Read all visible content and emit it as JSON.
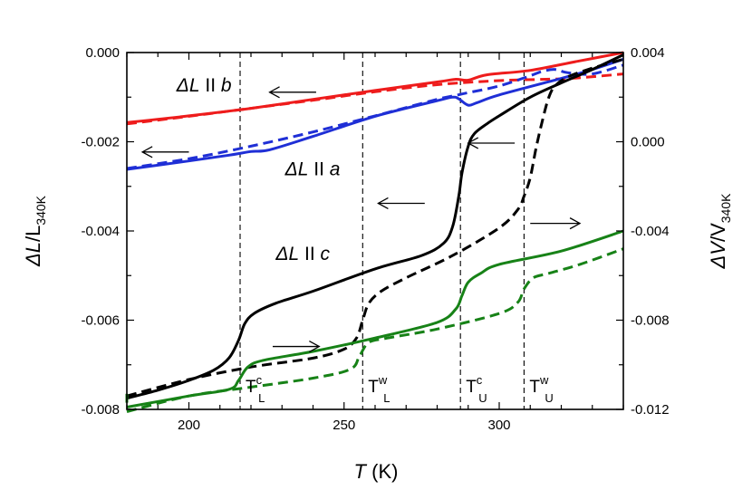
{
  "chart_data": {
    "type": "line",
    "title": "",
    "xlabel": {
      "italic": "T",
      "rest": " (K)"
    },
    "ylabel_left": {
      "italic": "ΔL",
      "rest": "/L",
      "sub": "340K"
    },
    "ylabel_right": {
      "italic": "ΔV",
      "rest": "/V",
      "sub": "340K"
    },
    "xlim": [
      180,
      340
    ],
    "ylim_left": [
      -0.008,
      0.0
    ],
    "ylim_right": [
      -0.012,
      0.004
    ],
    "x_ticks": [
      200,
      250,
      300
    ],
    "x_tick_labels": [
      "200",
      "250",
      "300"
    ],
    "left_ticks": [
      0.0,
      -0.002,
      -0.004,
      -0.006,
      -0.008
    ],
    "left_tick_labels": [
      "0.000",
      "-0.002",
      "-0.004",
      "-0.006",
      "-0.008"
    ],
    "right_ticks": [
      0.004,
      0.0,
      -0.004,
      -0.008,
      -0.012
    ],
    "right_tick_labels": [
      "0.004",
      "0.000",
      "-0.004",
      "-0.008",
      "-0.012"
    ],
    "colors": {
      "b": "#ee1c1c",
      "a": "#1f2fd6",
      "c": "#000000",
      "v": "#178217"
    },
    "vertical_lines": [
      {
        "name": "TcL",
        "x": 216.5,
        "base": "T",
        "sup": "c",
        "sub": "L"
      },
      {
        "name": "TwL",
        "x": 256,
        "base": "T",
        "sup": "w",
        "sub": "L"
      },
      {
        "name": "TcU",
        "x": 287.5,
        "base": "T",
        "sup": "c",
        "sub": "U"
      },
      {
        "name": "TwU",
        "x": 308,
        "base": "T",
        "sup": "w",
        "sub": "U"
      }
    ],
    "annotations": [
      {
        "name": "label-b",
        "base": "ΔL",
        "mid": " II ",
        "tail": "b",
        "x": 196,
        "y": -0.00087
      },
      {
        "name": "label-a",
        "base": "ΔL",
        "mid": " II ",
        "tail": "a",
        "x": 231,
        "y": -0.00275
      },
      {
        "name": "label-c",
        "base": "ΔL",
        "mid": " II ",
        "tail": "c",
        "x": 228,
        "y": -0.00465
      }
    ],
    "arrows": [
      {
        "name": "arrow-b-left",
        "dir": "left",
        "x1": 241,
        "x2": 226,
        "y": -0.00089
      },
      {
        "name": "arrow-a-left",
        "dir": "left",
        "x1": 200,
        "x2": 185,
        "y": -0.00223
      },
      {
        "name": "arrow-c-left",
        "dir": "left",
        "x1": 276,
        "x2": 261,
        "y": -0.00338
      },
      {
        "name": "arrow-cu-left",
        "dir": "left",
        "x1": 305,
        "x2": 290,
        "y": -0.00203
      },
      {
        "name": "arrow-v-right",
        "dir": "right",
        "x1": 227,
        "x2": 242,
        "y": -0.00659
      },
      {
        "name": "arrow-vu-right",
        "dir": "right",
        "x1": 310,
        "x2": 326,
        "y": -0.00383
      }
    ],
    "series": [
      {
        "name": "b-heating-solid",
        "color": "#ee1c1c",
        "style": "solid",
        "axis": "left",
        "points": [
          [
            180,
            -0.00157
          ],
          [
            200,
            -0.00142
          ],
          [
            220,
            -0.00125
          ],
          [
            240,
            -0.00105
          ],
          [
            260,
            -0.00085
          ],
          [
            280,
            -0.00066
          ],
          [
            286,
            -0.0006
          ],
          [
            290,
            -0.00062
          ],
          [
            296,
            -0.0005
          ],
          [
            310,
            -0.0004
          ],
          [
            325,
            -0.0002
          ],
          [
            340,
            0.0
          ]
        ]
      },
      {
        "name": "b-cooling-dashed",
        "color": "#ee1c1c",
        "style": "dashed",
        "axis": "left",
        "points": [
          [
            180,
            -0.0016
          ],
          [
            200,
            -0.00143
          ],
          [
            220,
            -0.00125
          ],
          [
            240,
            -0.00107
          ],
          [
            260,
            -0.00088
          ],
          [
            280,
            -0.00072
          ],
          [
            300,
            -0.00063
          ],
          [
            315,
            -0.0006
          ],
          [
            325,
            -0.00057
          ],
          [
            340,
            -0.00048
          ]
        ]
      },
      {
        "name": "a-heating-solid",
        "color": "#1f2fd6",
        "style": "solid",
        "axis": "left",
        "points": [
          [
            180,
            -0.00262
          ],
          [
            200,
            -0.00243
          ],
          [
            213,
            -0.0023
          ],
          [
            220,
            -0.00222
          ],
          [
            226,
            -0.00218
          ],
          [
            240,
            -0.00188
          ],
          [
            260,
            -0.00143
          ],
          [
            280,
            -0.00108
          ],
          [
            285,
            -0.001
          ],
          [
            287,
            -0.00104
          ],
          [
            290,
            -0.00118
          ],
          [
            293,
            -0.00112
          ],
          [
            300,
            -0.00095
          ],
          [
            320,
            -0.00058
          ],
          [
            330,
            -0.00038
          ],
          [
            340,
            -0.00015
          ]
        ]
      },
      {
        "name": "a-cooling-dashed",
        "color": "#1f2fd6",
        "style": "dashed",
        "axis": "left",
        "points": [
          [
            180,
            -0.0026
          ],
          [
            200,
            -0.00238
          ],
          [
            220,
            -0.0021
          ],
          [
            240,
            -0.00178
          ],
          [
            260,
            -0.00142
          ],
          [
            280,
            -0.00105
          ],
          [
            286,
            -0.00096
          ],
          [
            290,
            -0.0009
          ],
          [
            300,
            -0.00075
          ],
          [
            310,
            -0.00052
          ],
          [
            314,
            -0.00042
          ],
          [
            318,
            -0.00038
          ],
          [
            322,
            -0.00045
          ],
          [
            330,
            -0.00048
          ],
          [
            340,
            -0.00028
          ]
        ]
      },
      {
        "name": "c-heating-solid",
        "color": "#000000",
        "style": "solid",
        "axis": "left",
        "points": [
          [
            180,
            -0.00775
          ],
          [
            190,
            -0.00757
          ],
          [
            200,
            -0.00735
          ],
          [
            208,
            -0.00712
          ],
          [
            213,
            -0.00684
          ],
          [
            216,
            -0.00645
          ],
          [
            218,
            -0.00608
          ],
          [
            221,
            -0.00585
          ],
          [
            228,
            -0.00562
          ],
          [
            240,
            -0.00535
          ],
          [
            260,
            -0.00485
          ],
          [
            275,
            -0.00455
          ],
          [
            282,
            -0.00428
          ],
          [
            285,
            -0.0039
          ],
          [
            287,
            -0.0032
          ],
          [
            288,
            -0.0027
          ],
          [
            290,
            -0.0021
          ],
          [
            292,
            -0.00182
          ],
          [
            296,
            -0.0016
          ],
          [
            300,
            -0.00142
          ],
          [
            310,
            -0.001
          ],
          [
            320,
            -0.00068
          ],
          [
            330,
            -0.00038
          ],
          [
            340,
            -5e-05
          ]
        ]
      },
      {
        "name": "c-cooling-dashed",
        "color": "#000000",
        "style": "dashed",
        "axis": "left",
        "points": [
          [
            180,
            -0.0077
          ],
          [
            200,
            -0.00733
          ],
          [
            220,
            -0.00705
          ],
          [
            240,
            -0.00685
          ],
          [
            250,
            -0.00665
          ],
          [
            254,
            -0.0064
          ],
          [
            256,
            -0.006
          ],
          [
            258,
            -0.00562
          ],
          [
            262,
            -0.00535
          ],
          [
            270,
            -0.00505
          ],
          [
            285,
            -0.00455
          ],
          [
            300,
            -0.00393
          ],
          [
            306,
            -0.00352
          ],
          [
            308,
            -0.00322
          ],
          [
            310,
            -0.0028
          ],
          [
            312,
            -0.0021
          ],
          [
            314,
            -0.0015
          ],
          [
            316,
            -0.001
          ],
          [
            318,
            -0.00075
          ],
          [
            322,
            -0.00055
          ],
          [
            330,
            -0.00035
          ],
          [
            340,
            -0.00015
          ]
        ]
      },
      {
        "name": "v-heating-solid",
        "color": "#178217",
        "style": "solid",
        "axis": "right",
        "points": [
          [
            180,
            -0.0119
          ],
          [
            200,
            -0.0114
          ],
          [
            213,
            -0.0111
          ],
          [
            216,
            -0.0107
          ],
          [
            219,
            -0.0101
          ],
          [
            224,
            -0.0098
          ],
          [
            240,
            -0.0094
          ],
          [
            260,
            -0.0088
          ],
          [
            280,
            -0.0081
          ],
          [
            286,
            -0.0075
          ],
          [
            288,
            -0.0069
          ],
          [
            290,
            -0.0063
          ],
          [
            294,
            -0.0059
          ],
          [
            300,
            -0.0055
          ],
          [
            320,
            -0.0049
          ],
          [
            340,
            -0.004
          ]
        ]
      },
      {
        "name": "v-cooling-dashed",
        "color": "#178217",
        "style": "dashed",
        "axis": "right",
        "points": [
          [
            180,
            -0.0121
          ],
          [
            200,
            -0.0114
          ],
          [
            220,
            -0.011
          ],
          [
            240,
            -0.0106
          ],
          [
            252,
            -0.0102
          ],
          [
            255,
            -0.0096
          ],
          [
            258,
            -0.009
          ],
          [
            264,
            -0.0088
          ],
          [
            280,
            -0.0084
          ],
          [
            300,
            -0.0077
          ],
          [
            306,
            -0.0072
          ],
          [
            308,
            -0.0066
          ],
          [
            311,
            -0.0061
          ],
          [
            316,
            -0.0059
          ],
          [
            326,
            -0.0055
          ],
          [
            340,
            -0.0048
          ]
        ]
      },
      {
        "name": "v-edge-stub",
        "color": "#178217",
        "style": "dashed",
        "axis": "right",
        "points": [
          [
            180,
            -0.0117
          ],
          [
            180,
            -0.0113
          ]
        ]
      }
    ]
  }
}
